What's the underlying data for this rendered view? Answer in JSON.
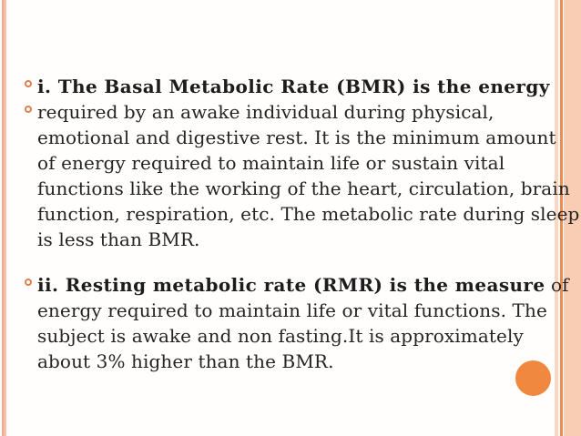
{
  "slide": {
    "background_color": "#fffefd",
    "text_color": "#232323",
    "accent_color": "#ec8b52",
    "bullet_ring_color": "#e0804c",
    "decorations": {
      "left_strip_color": "#f2ae92",
      "right_thin_strip_color": "#f9d6c1",
      "right_line_color": "#ec8b52",
      "right_band_color": "#f8cdb4",
      "corner_circle_color": "#f0893f"
    },
    "paragraphs": [
      {
        "lines": [
          {
            "bullet": true,
            "segments": [
              {
                "bold": true,
                "text": "i. The Basal Metabolic Rate (BMR) is the energy"
              }
            ]
          },
          {
            "bullet": true,
            "segments": [
              {
                "bold": false,
                "text": "required by an awake individual during physical,"
              }
            ]
          },
          {
            "bullet": false,
            "segments": [
              {
                "bold": false,
                "text": "emotional and digestive rest. It is the minimum amount"
              }
            ]
          },
          {
            "bullet": false,
            "segments": [
              {
                "bold": false,
                "text": "of energy required to maintain life or sustain vital"
              }
            ]
          },
          {
            "bullet": false,
            "segments": [
              {
                "bold": false,
                "text": "functions like the working of the heart, circulation, brain"
              }
            ]
          },
          {
            "bullet": false,
            "segments": [
              {
                "bold": false,
                "text": "function, respiration, etc. The metabolic rate during sleep"
              }
            ]
          },
          {
            "bullet": false,
            "segments": [
              {
                "bold": false,
                "text": "is less than BMR."
              }
            ]
          }
        ]
      },
      {
        "lines": [
          {
            "bullet": true,
            "segments": [
              {
                "bold": true,
                "text": "ii. Resting metabolic rate (RMR) is the measure"
              },
              {
                "bold": false,
                "text": " of"
              }
            ]
          },
          {
            "bullet": false,
            "segments": [
              {
                "bold": false,
                "text": "energy required to maintain life or vital functions. The"
              }
            ]
          },
          {
            "bullet": false,
            "segments": [
              {
                "bold": false,
                "text": "subject is awake and non fasting.It is approximately"
              }
            ]
          },
          {
            "bullet": false,
            "segments": [
              {
                "bold": false,
                "text": "about 3% higher than the BMR."
              }
            ]
          }
        ]
      }
    ]
  }
}
